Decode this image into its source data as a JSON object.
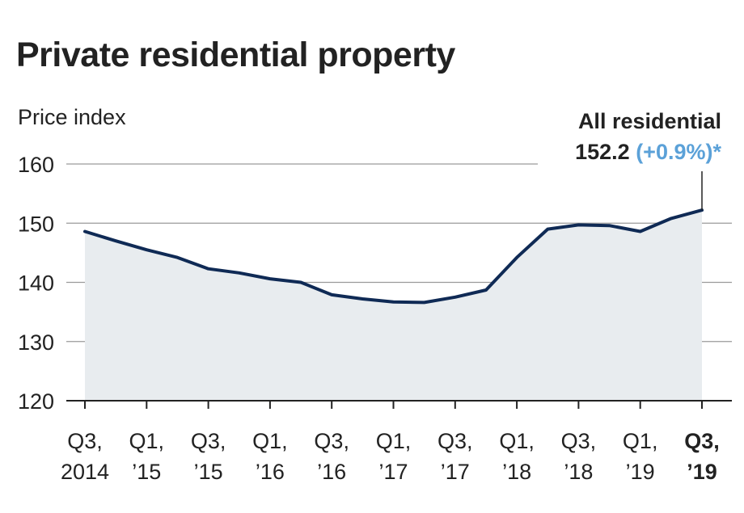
{
  "title": "Private residential property",
  "colors": {
    "line": "#0f2a55",
    "area": "#e8ecef",
    "grid": "#9a9a9a",
    "highlight": "#5ba1d8"
  },
  "callout": {
    "label": "All residential",
    "value": "152.2",
    "change": "(+0.9%)*"
  },
  "chart_data": {
    "type": "area",
    "ylabel": "Price index",
    "ylim": [
      120,
      160
    ],
    "yticks": [
      120,
      130,
      140,
      150,
      160
    ],
    "grid": true,
    "x_tick_labels": [
      [
        "Q3,",
        "2014"
      ],
      [
        "Q1,",
        "’15"
      ],
      [
        "Q3,",
        "’15"
      ],
      [
        "Q1,",
        "’16"
      ],
      [
        "Q3,",
        "’16"
      ],
      [
        "Q1,",
        "’17"
      ],
      [
        "Q3,",
        "’17"
      ],
      [
        "Q1,",
        "’18"
      ],
      [
        "Q3,",
        "’18"
      ],
      [
        "Q1,",
        "’19"
      ],
      [
        "Q3,",
        "’19"
      ]
    ],
    "x": [
      "Q3 2014",
      "Q4 2014",
      "Q1 2015",
      "Q2 2015",
      "Q3 2015",
      "Q4 2015",
      "Q1 2016",
      "Q2 2016",
      "Q3 2016",
      "Q4 2016",
      "Q1 2017",
      "Q2 2017",
      "Q3 2017",
      "Q4 2017",
      "Q1 2018",
      "Q2 2018",
      "Q3 2018",
      "Q4 2018",
      "Q1 2019",
      "Q2 2019",
      "Q3 2019"
    ],
    "series": [
      {
        "values": [
          148.6,
          147.0,
          145.5,
          144.2,
          142.3,
          141.6,
          140.6,
          140.0,
          137.9,
          137.2,
          136.7,
          136.6,
          137.5,
          138.7,
          144.2,
          149.0,
          149.7,
          149.6,
          148.6,
          150.8,
          152.2
        ]
      }
    ]
  }
}
